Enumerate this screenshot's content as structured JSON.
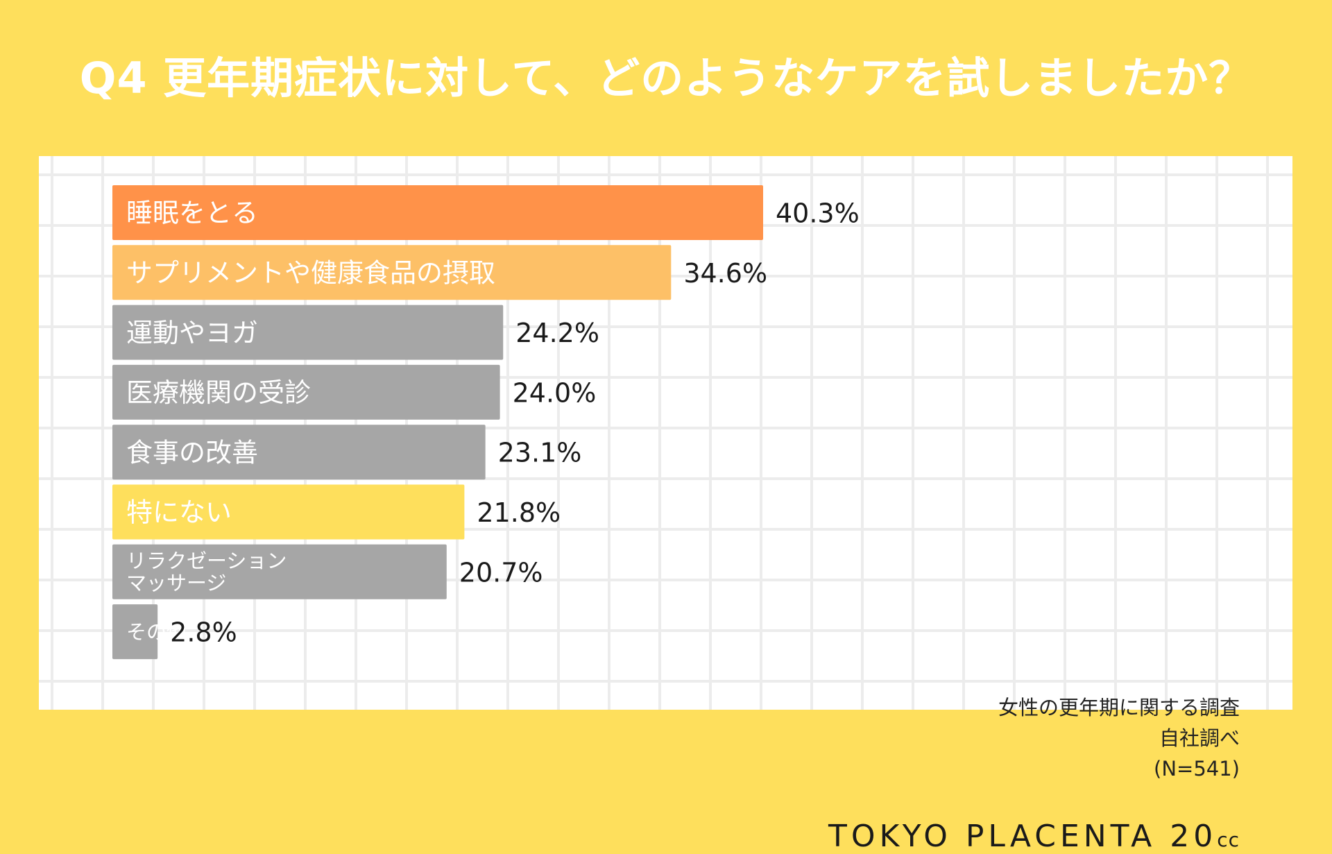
{
  "title": "Q4 更年期症状に対して、どのようなケアを試しましたか？",
  "chart_data": {
    "type": "bar",
    "orientation": "horizontal",
    "title": "Q4 更年期症状に対して、どのようなケアを試しましたか？",
    "unit": "%",
    "categories": [
      [
        "睡眠をとる"
      ],
      [
        "サプリメントや健康食品の摂取"
      ],
      [
        "運動やヨガ"
      ],
      [
        "医療機関の受診"
      ],
      [
        "食事の改善"
      ],
      [
        "特にない"
      ],
      [
        "リラクゼーション",
        "マッサージ"
      ],
      [
        "その他"
      ]
    ],
    "values": [
      40.3,
      34.6,
      24.2,
      24.0,
      23.1,
      21.8,
      20.7,
      2.8
    ],
    "value_labels": [
      "40.3%",
      "34.6%",
      "24.2%",
      "24.0%",
      "23.1%",
      "21.8%",
      "20.7%",
      "2.8%"
    ],
    "colors": [
      "#FF9249",
      "#FDC067",
      "#A6A6A6",
      "#A6A6A6",
      "#A6A6A6",
      "#FEDF5C",
      "#A6A6A6",
      "#A6A6A6"
    ]
  },
  "source": {
    "line1": "女性の更年期に関する調査",
    "line2": "自社調べ",
    "line3": "(N=541)"
  },
  "brand": {
    "name": "TOKYO PLACENTA 20",
    "suffix": "cc"
  }
}
